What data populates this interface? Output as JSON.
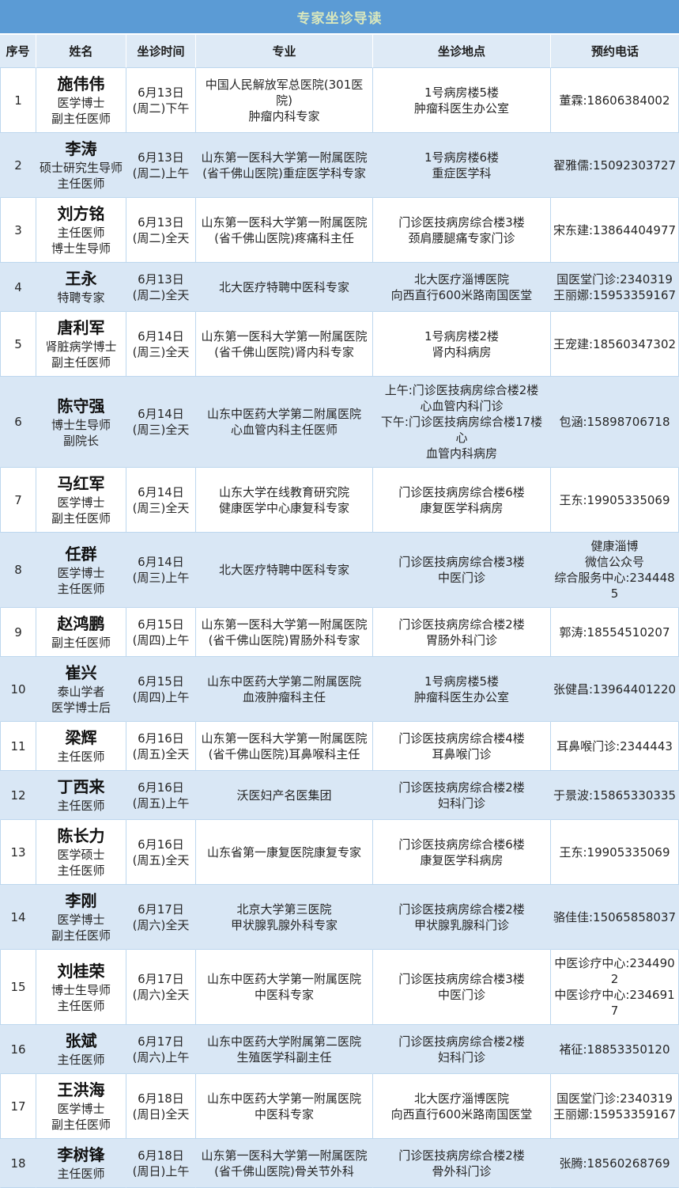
{
  "title": "专家坐诊导读",
  "columns": [
    "序号",
    "姓名",
    "坐诊时间",
    "专业",
    "坐诊地点",
    "预约电话"
  ],
  "colors": {
    "title_bar_bg": "#5B9BD5",
    "title_text": "#D9E7BD",
    "header_bg": "#DEEAF6",
    "row_alt_bg": "#D9E7F5",
    "grid_border": "#BDD7EE",
    "body_text": "#262626"
  },
  "rows": [
    {
      "no": "1",
      "name": "施伟伟",
      "titles": [
        "医学博士",
        "副主任医师"
      ],
      "time": [
        "6月13日",
        "(周二)下午"
      ],
      "specialty": [
        "中国人民解放军总医院(301医院)",
        "肿瘤内科专家"
      ],
      "location": [
        "1号病房楼5楼",
        "肿瘤科医生办公室"
      ],
      "phone": [
        "董霖:18606384002"
      ]
    },
    {
      "no": "2",
      "name": "李涛",
      "titles": [
        "硕士研究生导师",
        "主任医师"
      ],
      "time": [
        "6月13日",
        "(周二)上午"
      ],
      "specialty": [
        "山东第一医科大学第一附属医院",
        "(省千佛山医院)重症医学科专家"
      ],
      "location": [
        "1号病房楼6楼",
        "重症医学科"
      ],
      "phone": [
        "翟雅儒:15092303727"
      ]
    },
    {
      "no": "3",
      "name": "刘方铭",
      "titles": [
        "主任医师",
        "博士生导师"
      ],
      "time": [
        "6月13日",
        "(周二)全天"
      ],
      "specialty": [
        "山东第一医科大学第一附属医院",
        "(省千佛山医院)疼痛科主任"
      ],
      "location": [
        "门诊医技病房综合楼3楼",
        "颈肩腰腿痛专家门诊"
      ],
      "phone": [
        "宋东建:13864404977"
      ]
    },
    {
      "no": "4",
      "name": "王永",
      "titles": [
        "特聘专家"
      ],
      "time": [
        "6月13日",
        "(周二)全天"
      ],
      "specialty": [
        "北大医疗特聘中医科专家"
      ],
      "location": [
        "北大医疗淄博医院",
        "向西直行600米路南国医堂"
      ],
      "phone": [
        "国医堂门诊:2340319",
        "王丽娜:15953359167"
      ]
    },
    {
      "no": "5",
      "name": "唐利军",
      "titles": [
        "肾脏病学博士",
        "副主任医师"
      ],
      "time": [
        "6月14日",
        "(周三)全天"
      ],
      "specialty": [
        "山东第一医科大学第一附属医院",
        "(省千佛山医院)肾内科专家"
      ],
      "location": [
        "1号病房楼2楼",
        "肾内科病房"
      ],
      "phone": [
        "王宠建:18560347302"
      ]
    },
    {
      "no": "6",
      "name": "陈守强",
      "titles": [
        "博士生导师",
        "副院长"
      ],
      "time": [
        "6月14日",
        "(周三)全天"
      ],
      "specialty": [
        "山东中医药大学第二附属医院",
        "心血管内科主任医师"
      ],
      "location": [
        "上午:门诊医技病房综合楼2楼",
        "心血管内科门诊",
        "下午:门诊医技病房综合楼17楼心",
        "血管内科病房"
      ],
      "phone": [
        "包涵:15898706718"
      ]
    },
    {
      "no": "7",
      "name": "马红军",
      "titles": [
        "医学博士",
        "副主任医师"
      ],
      "time": [
        "6月14日",
        "(周三)全天"
      ],
      "specialty": [
        "山东大学在线教育研究院",
        "健康医学中心康复科专家"
      ],
      "location": [
        "门诊医技病房综合楼6楼",
        "康复医学科病房"
      ],
      "phone": [
        "王东:19905335069"
      ]
    },
    {
      "no": "8",
      "name": "任群",
      "titles": [
        "医学博士",
        "主任医师"
      ],
      "time": [
        "6月14日",
        "(周三)上午"
      ],
      "specialty": [
        "北大医疗特聘中医科专家"
      ],
      "location": [
        "门诊医技病房综合楼3楼",
        "中医门诊"
      ],
      "phone": [
        "健康淄博",
        "微信公众号",
        "综合服务中心:2344485"
      ]
    },
    {
      "no": "9",
      "name": "赵鸿鹏",
      "titles": [
        "副主任医师"
      ],
      "time": [
        "6月15日",
        "(周四)上午"
      ],
      "specialty": [
        "山东第一医科大学第一附属医院",
        "(省千佛山医院)胃肠外科专家"
      ],
      "location": [
        "门诊医技病房综合楼2楼",
        "胃肠外科门诊"
      ],
      "phone": [
        "郭涛:18554510207"
      ]
    },
    {
      "no": "10",
      "name": "崔兴",
      "titles": [
        "泰山学者",
        "医学博士后"
      ],
      "time": [
        "6月15日",
        "(周四)上午"
      ],
      "specialty": [
        "山东中医药大学第二附属医院",
        "血液肿瘤科主任"
      ],
      "location": [
        "1号病房楼5楼",
        "肿瘤科医生办公室"
      ],
      "phone": [
        "张健昌:13964401220"
      ]
    },
    {
      "no": "11",
      "name": "梁辉",
      "titles": [
        "主任医师"
      ],
      "time": [
        "6月16日",
        "(周五)全天"
      ],
      "specialty": [
        "山东第一医科大学第一附属医院",
        "(省千佛山医院)耳鼻喉科主任"
      ],
      "location": [
        "门诊医技病房综合楼4楼",
        "耳鼻喉门诊"
      ],
      "phone": [
        "耳鼻喉门诊:2344443"
      ]
    },
    {
      "no": "12",
      "name": "丁西来",
      "titles": [
        "主任医师"
      ],
      "time": [
        "6月16日",
        "(周五)上午"
      ],
      "specialty": [
        "沃医妇产名医集团"
      ],
      "location": [
        "门诊医技病房综合楼2楼",
        "妇科门诊"
      ],
      "phone": [
        "于景波:15865330335"
      ]
    },
    {
      "no": "13",
      "name": "陈长力",
      "titles": [
        "医学硕士",
        "主任医师"
      ],
      "time": [
        "6月16日",
        "(周五)全天"
      ],
      "specialty": [
        "山东省第一康复医院康复专家"
      ],
      "location": [
        "门诊医技病房综合楼6楼",
        "康复医学科病房"
      ],
      "phone": [
        "王东:19905335069"
      ]
    },
    {
      "no": "14",
      "name": "李刚",
      "titles": [
        "医学博士",
        "副主任医师"
      ],
      "time": [
        "6月17日",
        "(周六)全天"
      ],
      "specialty": [
        "北京大学第三医院",
        "甲状腺乳腺外科专家"
      ],
      "location": [
        "门诊医技病房综合楼2楼",
        "甲状腺乳腺科门诊"
      ],
      "phone": [
        "骆佳佳:15065858037"
      ]
    },
    {
      "no": "15",
      "name": "刘桂荣",
      "titles": [
        "博士生导师",
        "主任医师"
      ],
      "time": [
        "6月17日",
        "(周六)全天"
      ],
      "specialty": [
        "山东中医药大学第一附属医院",
        "中医科专家"
      ],
      "location": [
        "门诊医技病房综合楼3楼",
        "中医门诊"
      ],
      "phone": [
        "中医诊疗中心:2344902",
        "中医诊疗中心:2346917"
      ]
    },
    {
      "no": "16",
      "name": "张斌",
      "titles": [
        "主任医师"
      ],
      "time": [
        "6月17日",
        "(周六)上午"
      ],
      "specialty": [
        "山东中医药大学附属第二医院",
        "生殖医学科副主任"
      ],
      "location": [
        "门诊医技病房综合楼2楼",
        "妇科门诊"
      ],
      "phone": [
        "褚征:18853350120"
      ]
    },
    {
      "no": "17",
      "name": "王洪海",
      "titles": [
        "医学博士",
        "副主任医师"
      ],
      "time": [
        "6月18日",
        "(周日)全天"
      ],
      "specialty": [
        "山东中医药大学第一附属医院",
        "中医科专家"
      ],
      "location": [
        "北大医疗淄博医院",
        "向西直行600米路南国医堂"
      ],
      "phone": [
        "国医堂门诊:2340319",
        "王丽娜:15953359167"
      ]
    },
    {
      "no": "18",
      "name": "李树锋",
      "titles": [
        "主任医师"
      ],
      "time": [
        "6月18日",
        "(周日)上午"
      ],
      "specialty": [
        "山东第一医科大学第一附属医院",
        "(省千佛山医院)骨关节外科"
      ],
      "location": [
        "门诊医技病房综合楼2楼",
        "骨外科门诊"
      ],
      "phone": [
        "张腾:18560268769"
      ]
    }
  ]
}
